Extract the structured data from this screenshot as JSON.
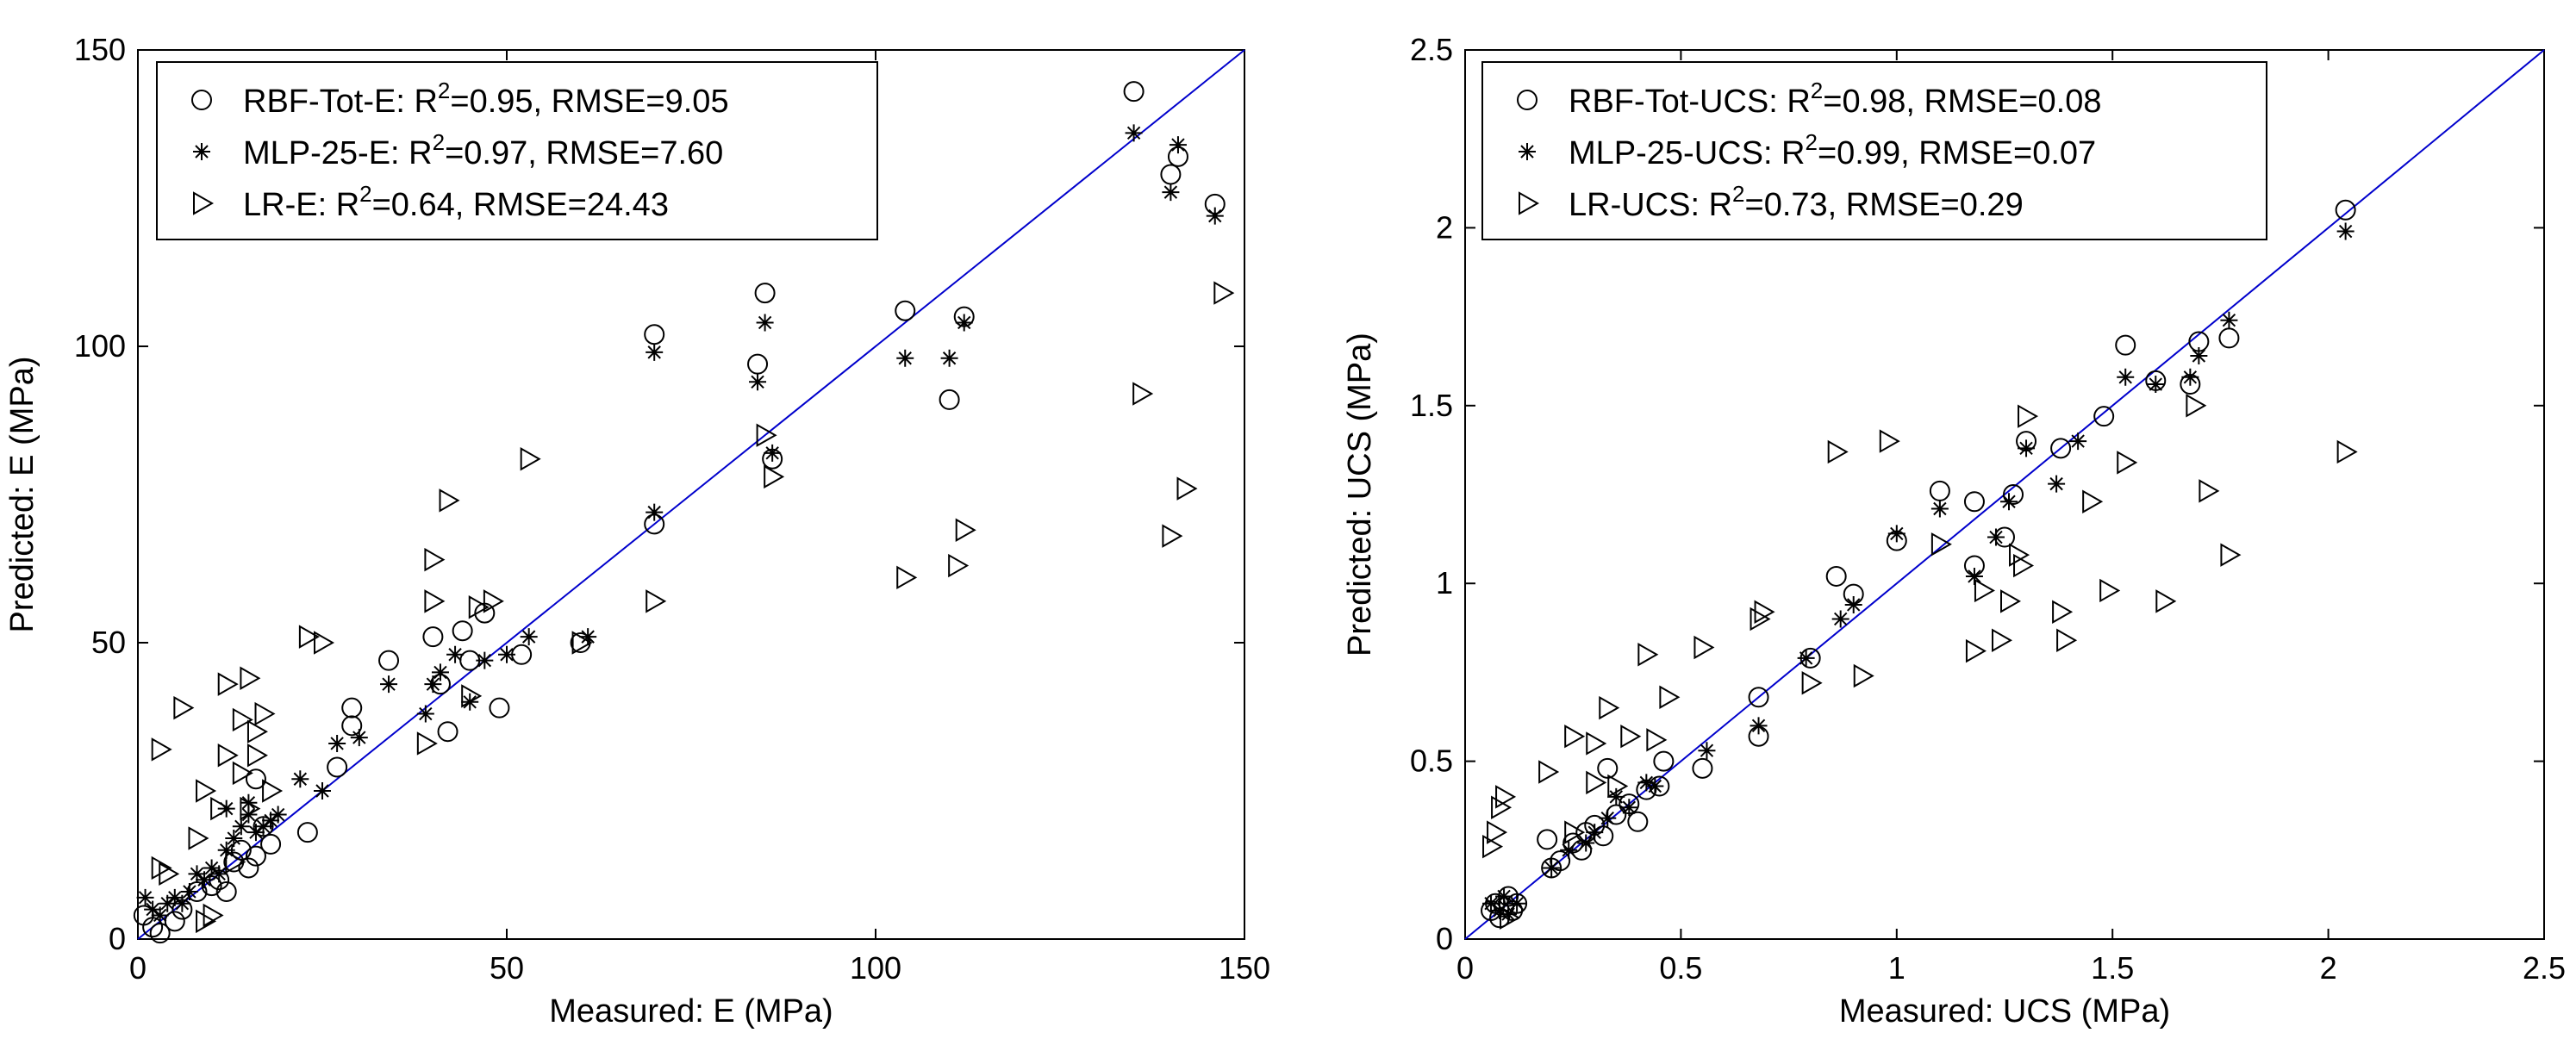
{
  "figure_label": "Measured versus predicted scatter plots",
  "colors": {
    "fit_line": "#0000cc",
    "marker": "#000000",
    "background": "#ffffff"
  },
  "chart_data": [
    {
      "id": "e",
      "type": "scatter",
      "xlabel": "Measured: E (MPa)",
      "ylabel": "Predicted: E (MPa)",
      "xlim": [
        0,
        150
      ],
      "ylim": [
        0,
        150
      ],
      "xticks": [
        0,
        50,
        100,
        150
      ],
      "yticks": [
        0,
        50,
        100,
        150
      ],
      "xtick_labels": [
        "0",
        "50",
        "100",
        "150"
      ],
      "ytick_labels": [
        "0",
        "50",
        "100",
        "150"
      ],
      "reference_line": [
        [
          0,
          0
        ],
        [
          150,
          150
        ]
      ],
      "legend": [
        {
          "name": "RBF-Tot-E",
          "marker": "circle",
          "text": "RBF-Tot-E: R",
          "sup": "2",
          "rest": "=0.95, RMSE=9.05"
        },
        {
          "name": "MLP-25-E",
          "marker": "star",
          "text": "MLP-25-E: R",
          "sup": "2",
          "rest": "=0.97, RMSE=7.60"
        },
        {
          "name": "LR-E",
          "marker": "triangle-right",
          "text": "LR-E: R",
          "sup": "2",
          "rest": "=0.64, RMSE=24.43"
        }
      ],
      "series": [
        {
          "name": "RBF-Tot-E",
          "marker": "circle",
          "points": [
            [
              0.8,
              4
            ],
            [
              2,
              2
            ],
            [
              3,
              1
            ],
            [
              5,
              3
            ],
            [
              6,
              5
            ],
            [
              8,
              8
            ],
            [
              10,
              9
            ],
            [
              11,
              10
            ],
            [
              12,
              8
            ],
            [
              13,
              13
            ],
            [
              14,
              15
            ],
            [
              15,
              12
            ],
            [
              16,
              14
            ],
            [
              17,
              19
            ],
            [
              18,
              16
            ],
            [
              16,
              27
            ],
            [
              23,
              18
            ],
            [
              27,
              29
            ],
            [
              29,
              36
            ],
            [
              29,
              39
            ],
            [
              34,
              47
            ],
            [
              40,
              51
            ],
            [
              41,
              43
            ],
            [
              42,
              35
            ],
            [
              44,
              52
            ],
            [
              45,
              47
            ],
            [
              47,
              55
            ],
            [
              49,
              39
            ],
            [
              52,
              48
            ],
            [
              60,
              50
            ],
            [
              70,
              70
            ],
            [
              70,
              102
            ],
            [
              84,
              97
            ],
            [
              85,
              109
            ],
            [
              86,
              81
            ],
            [
              104,
              106
            ],
            [
              110,
              91
            ],
            [
              112,
              105
            ],
            [
              135,
              143
            ],
            [
              140,
              129
            ],
            [
              141,
              132
            ],
            [
              146,
              124
            ]
          ]
        },
        {
          "name": "MLP-25-E",
          "marker": "star",
          "points": [
            [
              1,
              7
            ],
            [
              2,
              5
            ],
            [
              3,
              4
            ],
            [
              4,
              6
            ],
            [
              5,
              7
            ],
            [
              6,
              6
            ],
            [
              7,
              8
            ],
            [
              8,
              11
            ],
            [
              9,
              10
            ],
            [
              10,
              12
            ],
            [
              11,
              11
            ],
            [
              12,
              15
            ],
            [
              12,
              22
            ],
            [
              13,
              17
            ],
            [
              14,
              19
            ],
            [
              15,
              21
            ],
            [
              15,
              23
            ],
            [
              16,
              18
            ],
            [
              17,
              19
            ],
            [
              18,
              20
            ],
            [
              19,
              21
            ],
            [
              22,
              27
            ],
            [
              25,
              25
            ],
            [
              27,
              33
            ],
            [
              30,
              34
            ],
            [
              34,
              43
            ],
            [
              39,
              38
            ],
            [
              40,
              43
            ],
            [
              41,
              45
            ],
            [
              43,
              48
            ],
            [
              45,
              40
            ],
            [
              47,
              47
            ],
            [
              50,
              48
            ],
            [
              53,
              51
            ],
            [
              61,
              51
            ],
            [
              70,
              72
            ],
            [
              70,
              99
            ],
            [
              84,
              94
            ],
            [
              85,
              104
            ],
            [
              86,
              82
            ],
            [
              104,
              98
            ],
            [
              110,
              98
            ],
            [
              112,
              104
            ],
            [
              135,
              136
            ],
            [
              140,
              126
            ],
            [
              141,
              134
            ],
            [
              146,
              122
            ]
          ]
        },
        {
          "name": "LR-E",
          "marker": "triangle-right",
          "points": [
            [
              3,
              32
            ],
            [
              3,
              12
            ],
            [
              4,
              11
            ],
            [
              6,
              39
            ],
            [
              8,
              17
            ],
            [
              9,
              25
            ],
            [
              9,
              3
            ],
            [
              10,
              4
            ],
            [
              11,
              22
            ],
            [
              12,
              31
            ],
            [
              12,
              43
            ],
            [
              13,
              13
            ],
            [
              14,
              37
            ],
            [
              14,
              28
            ],
            [
              15,
              44
            ],
            [
              15,
              22
            ],
            [
              16,
              31
            ],
            [
              16,
              35
            ],
            [
              17,
              38
            ],
            [
              18,
              25
            ],
            [
              23,
              51
            ],
            [
              25,
              50
            ],
            [
              39,
              33
            ],
            [
              40,
              57
            ],
            [
              40,
              64
            ],
            [
              42,
              74
            ],
            [
              45,
              41
            ],
            [
              46,
              56
            ],
            [
              48,
              57
            ],
            [
              53,
              81
            ],
            [
              60,
              50
            ],
            [
              70,
              57
            ],
            [
              85,
              85
            ],
            [
              86,
              78
            ],
            [
              104,
              61
            ],
            [
              111,
              63
            ],
            [
              112,
              69
            ],
            [
              136,
              92
            ],
            [
              140,
              68
            ],
            [
              142,
              76
            ],
            [
              147,
              109
            ]
          ]
        }
      ]
    },
    {
      "id": "ucs",
      "type": "scatter",
      "xlabel": "Measured: UCS (MPa)",
      "ylabel": "Predicted: UCS (MPa)",
      "xlim": [
        0,
        2.5
      ],
      "ylim": [
        0,
        2.5
      ],
      "xticks": [
        0,
        0.5,
        1,
        1.5,
        2,
        2.5
      ],
      "yticks": [
        0,
        0.5,
        1,
        1.5,
        2,
        2.5
      ],
      "xtick_labels": [
        "0",
        "0.5",
        "1",
        "1.5",
        "2",
        "2.5"
      ],
      "ytick_labels": [
        "0",
        "0.5",
        "1",
        "1.5",
        "2",
        "2.5"
      ],
      "reference_line": [
        [
          0,
          0
        ],
        [
          2.5,
          2.5
        ]
      ],
      "legend": [
        {
          "name": "RBF-Tot-UCS",
          "marker": "circle",
          "text": "RBF-Tot-UCS: R",
          "sup": "2",
          "rest": "=0.98, RMSE=0.08"
        },
        {
          "name": "MLP-25-UCS",
          "marker": "star",
          "text": "MLP-25-UCS: R",
          "sup": "2",
          "rest": "=0.99, RMSE=0.07"
        },
        {
          "name": "LR-UCS",
          "marker": "triangle-right",
          "text": "LR-UCS: R",
          "sup": "2",
          "rest": "=0.73, RMSE=0.29"
        }
      ],
      "series": [
        {
          "name": "RBF-Tot-UCS",
          "marker": "circle",
          "points": [
            [
              0.06,
              0.08
            ],
            [
              0.07,
              0.1
            ],
            [
              0.08,
              0.06
            ],
            [
              0.09,
              0.09
            ],
            [
              0.1,
              0.12
            ],
            [
              0.11,
              0.08
            ],
            [
              0.12,
              0.1
            ],
            [
              0.19,
              0.28
            ],
            [
              0.2,
              0.2
            ],
            [
              0.22,
              0.22
            ],
            [
              0.25,
              0.27
            ],
            [
              0.27,
              0.25
            ],
            [
              0.28,
              0.3
            ],
            [
              0.3,
              0.32
            ],
            [
              0.32,
              0.29
            ],
            [
              0.33,
              0.48
            ],
            [
              0.35,
              0.35
            ],
            [
              0.38,
              0.38
            ],
            [
              0.4,
              0.33
            ],
            [
              0.42,
              0.42
            ],
            [
              0.45,
              0.43
            ],
            [
              0.46,
              0.5
            ],
            [
              0.55,
              0.48
            ],
            [
              0.68,
              0.68
            ],
            [
              0.68,
              0.57
            ],
            [
              0.8,
              0.79
            ],
            [
              0.86,
              1.02
            ],
            [
              0.9,
              0.97
            ],
            [
              1.0,
              1.12
            ],
            [
              1.1,
              1.26
            ],
            [
              1.18,
              1.23
            ],
            [
              1.18,
              1.05
            ],
            [
              1.25,
              1.13
            ],
            [
              1.27,
              1.25
            ],
            [
              1.3,
              1.4
            ],
            [
              1.38,
              1.38
            ],
            [
              1.48,
              1.47
            ],
            [
              1.53,
              1.67
            ],
            [
              1.6,
              1.57
            ],
            [
              1.68,
              1.56
            ],
            [
              1.7,
              1.68
            ],
            [
              1.77,
              1.69
            ],
            [
              2.04,
              2.05
            ]
          ]
        },
        {
          "name": "MLP-25-UCS",
          "marker": "star",
          "points": [
            [
              0.06,
              0.1
            ],
            [
              0.08,
              0.08
            ],
            [
              0.09,
              0.12
            ],
            [
              0.1,
              0.07
            ],
            [
              0.12,
              0.1
            ],
            [
              0.2,
              0.2
            ],
            [
              0.24,
              0.25
            ],
            [
              0.28,
              0.27
            ],
            [
              0.3,
              0.3
            ],
            [
              0.33,
              0.34
            ],
            [
              0.35,
              0.4
            ],
            [
              0.38,
              0.37
            ],
            [
              0.42,
              0.44
            ],
            [
              0.44,
              0.43
            ],
            [
              0.56,
              0.53
            ],
            [
              0.68,
              0.6
            ],
            [
              0.79,
              0.79
            ],
            [
              0.87,
              0.9
            ],
            [
              0.9,
              0.94
            ],
            [
              1.0,
              1.14
            ],
            [
              1.1,
              1.21
            ],
            [
              1.18,
              1.02
            ],
            [
              1.23,
              1.13
            ],
            [
              1.26,
              1.23
            ],
            [
              1.3,
              1.38
            ],
            [
              1.37,
              1.28
            ],
            [
              1.42,
              1.4
            ],
            [
              1.53,
              1.58
            ],
            [
              1.6,
              1.56
            ],
            [
              1.68,
              1.58
            ],
            [
              1.7,
              1.64
            ],
            [
              1.77,
              1.74
            ],
            [
              2.04,
              1.99
            ]
          ]
        },
        {
          "name": "LR-UCS",
          "marker": "triangle-right",
          "points": [
            [
              0.06,
              0.26
            ],
            [
              0.07,
              0.3
            ],
            [
              0.08,
              0.37
            ],
            [
              0.09,
              0.4
            ],
            [
              0.1,
              0.06
            ],
            [
              0.19,
              0.47
            ],
            [
              0.25,
              0.3
            ],
            [
              0.25,
              0.57
            ],
            [
              0.3,
              0.44
            ],
            [
              0.3,
              0.55
            ],
            [
              0.33,
              0.65
            ],
            [
              0.35,
              0.43
            ],
            [
              0.38,
              0.57
            ],
            [
              0.42,
              0.8
            ],
            [
              0.44,
              0.56
            ],
            [
              0.47,
              0.68
            ],
            [
              0.55,
              0.82
            ],
            [
              0.68,
              0.9
            ],
            [
              0.69,
              0.92
            ],
            [
              0.8,
              0.72
            ],
            [
              0.86,
              1.37
            ],
            [
              0.92,
              0.74
            ],
            [
              0.98,
              1.4
            ],
            [
              1.1,
              1.11
            ],
            [
              1.18,
              0.81
            ],
            [
              1.2,
              0.98
            ],
            [
              1.24,
              0.84
            ],
            [
              1.26,
              0.95
            ],
            [
              1.28,
              1.08
            ],
            [
              1.29,
              1.05
            ],
            [
              1.3,
              1.47
            ],
            [
              1.38,
              0.92
            ],
            [
              1.39,
              0.84
            ],
            [
              1.45,
              1.23
            ],
            [
              1.49,
              0.98
            ],
            [
              1.53,
              1.34
            ],
            [
              1.62,
              0.95
            ],
            [
              1.69,
              1.5
            ],
            [
              1.72,
              1.26
            ],
            [
              1.77,
              1.08
            ],
            [
              2.04,
              1.37
            ]
          ]
        }
      ]
    }
  ]
}
